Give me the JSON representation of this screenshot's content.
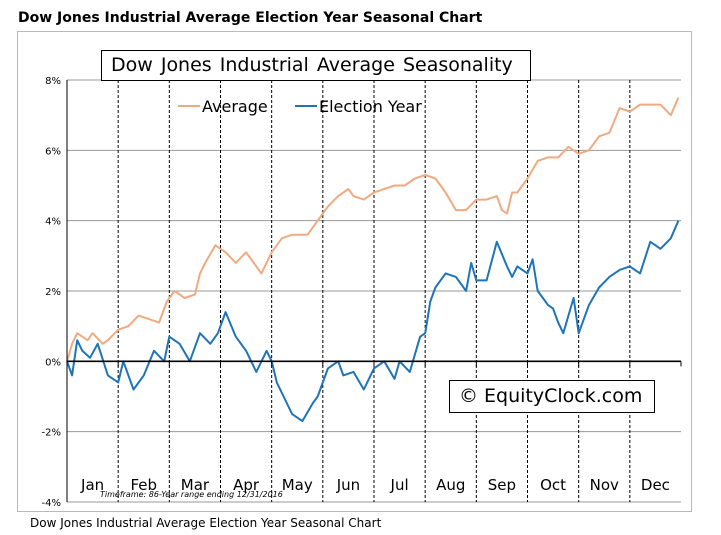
{
  "page": {
    "title": "Dow Jones Industrial Average Election Year Seasonal Chart",
    "caption": "Dow Jones Industrial Average Election Year Seasonal Chart"
  },
  "chart_data": {
    "type": "line",
    "title": "Dow Jones Industrial Average Seasonality",
    "annotation": "© EquityClock.com",
    "timeframe_note": "Timeframe: 86-Year range ending 12/31/2016",
    "xlabel": "",
    "ylabel": "",
    "months": [
      "Jan",
      "Feb",
      "Mar",
      "Apr",
      "May",
      "Jun",
      "Jul",
      "Aug",
      "Sep",
      "Oct",
      "Nov",
      "Dec"
    ],
    "yticks": [
      "8%",
      "6%",
      "4%",
      "2%",
      "0%",
      "-2%",
      "-4%"
    ],
    "ylim": [
      -4,
      8
    ],
    "xlim": [
      0,
      12
    ],
    "grid": true,
    "legend_position": "top-left",
    "colors": {
      "average": "#f0aa80",
      "election_year": "#1f74b9"
    },
    "series": [
      {
        "name": "Average",
        "x": [
          0,
          0.1,
          0.2,
          0.3,
          0.4,
          0.5,
          0.6,
          0.7,
          0.8,
          1.0,
          1.2,
          1.4,
          1.6,
          1.8,
          1.95,
          2.1,
          2.3,
          2.5,
          2.6,
          2.7,
          2.9,
          3.1,
          3.3,
          3.5,
          3.6,
          3.8,
          4.0,
          4.2,
          4.4,
          4.5,
          4.7,
          4.9,
          5.1,
          5.3,
          5.5,
          5.6,
          5.8,
          6.0,
          6.2,
          6.4,
          6.6,
          6.8,
          7.0,
          7.2,
          7.4,
          7.6,
          7.8,
          8.0,
          8.2,
          8.4,
          8.5,
          8.6,
          8.7,
          8.8,
          9.0,
          9.2,
          9.4,
          9.6,
          9.8,
          10.0,
          10.2,
          10.4,
          10.6,
          10.8,
          11.0,
          11.2,
          11.4,
          11.6,
          11.8,
          11.95
        ],
        "values": [
          0.0,
          0.5,
          0.8,
          0.7,
          0.6,
          0.8,
          0.65,
          0.5,
          0.6,
          0.9,
          1.0,
          1.3,
          1.2,
          1.1,
          1.7,
          2.0,
          1.8,
          1.9,
          2.5,
          2.8,
          3.3,
          3.1,
          2.8,
          3.1,
          2.9,
          2.5,
          3.1,
          3.5,
          3.6,
          3.6,
          3.6,
          4.0,
          4.4,
          4.7,
          4.9,
          4.7,
          4.6,
          4.8,
          4.9,
          5.0,
          5.0,
          5.2,
          5.3,
          5.2,
          4.8,
          4.3,
          4.3,
          4.6,
          4.6,
          4.7,
          4.3,
          4.2,
          4.8,
          4.8,
          5.2,
          5.7,
          5.8,
          5.8,
          6.1,
          5.9,
          6.0,
          6.4,
          6.5,
          7.2,
          7.1,
          7.3,
          7.3,
          7.3,
          7.0,
          7.5
        ]
      },
      {
        "name": "Election Year",
        "x": [
          0,
          0.1,
          0.2,
          0.3,
          0.45,
          0.6,
          0.8,
          1.0,
          1.1,
          1.3,
          1.5,
          1.7,
          1.9,
          2.0,
          2.2,
          2.4,
          2.6,
          2.8,
          2.95,
          3.1,
          3.3,
          3.5,
          3.7,
          3.9,
          4.0,
          4.1,
          4.2,
          4.4,
          4.6,
          4.8,
          4.9,
          5.1,
          5.3,
          5.4,
          5.6,
          5.8,
          6.0,
          6.2,
          6.4,
          6.5,
          6.7,
          6.9,
          7.0,
          7.1,
          7.2,
          7.4,
          7.6,
          7.8,
          7.9,
          8.0,
          8.2,
          8.4,
          8.6,
          8.7,
          8.8,
          9.0,
          9.1,
          9.2,
          9.3,
          9.4,
          9.5,
          9.6,
          9.7,
          9.8,
          9.9,
          10.0,
          10.2,
          10.4,
          10.6,
          10.8,
          11.0,
          11.2,
          11.4,
          11.6,
          11.8,
          11.95
        ],
        "values": [
          0.0,
          -0.4,
          0.6,
          0.3,
          0.1,
          0.5,
          -0.4,
          -0.6,
          0.0,
          -0.8,
          -0.4,
          0.3,
          0.0,
          0.7,
          0.5,
          0.0,
          0.8,
          0.5,
          0.8,
          1.4,
          0.7,
          0.3,
          -0.3,
          0.3,
          0.0,
          -0.6,
          -0.9,
          -1.5,
          -1.7,
          -1.2,
          -1.0,
          -0.2,
          0.0,
          -0.4,
          -0.3,
          -0.8,
          -0.2,
          0.0,
          -0.5,
          0.0,
          -0.3,
          0.7,
          0.8,
          1.7,
          2.1,
          2.5,
          2.4,
          2.0,
          2.8,
          2.3,
          2.3,
          3.4,
          2.7,
          2.4,
          2.7,
          2.5,
          2.9,
          2.0,
          1.8,
          1.6,
          1.5,
          1.1,
          0.8,
          1.3,
          1.8,
          0.8,
          1.6,
          2.1,
          2.4,
          2.6,
          2.7,
          2.5,
          3.4,
          3.2,
          3.5,
          4.0
        ]
      }
    ]
  }
}
